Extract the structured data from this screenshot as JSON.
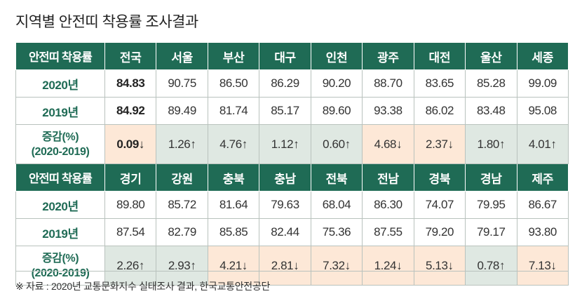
{
  "title": "지역별 안전띠 착용률 조사결과",
  "colors": {
    "header_bg": "#1f6b55",
    "up_bg": "#dfe8e2",
    "down_bg": "#fde8d7",
    "label_text": "#1f6b55"
  },
  "row_labels": {
    "header": "안전띠 착용률",
    "y2020": "2020년",
    "y2019": "2019년",
    "change_line1": "증감(%)",
    "change_line2": "(2020-2019)"
  },
  "blocks": [
    {
      "regions": [
        "전국",
        "서울",
        "부산",
        "대구",
        "인천",
        "광주",
        "대전",
        "울산",
        "세종"
      ],
      "y2020": [
        "84.83",
        "90.75",
        "86.50",
        "86.29",
        "90.20",
        "88.70",
        "83.65",
        "85.28",
        "99.09"
      ],
      "y2019": [
        "84.92",
        "89.49",
        "81.74",
        "85.17",
        "89.60",
        "93.38",
        "86.02",
        "83.48",
        "95.08"
      ],
      "change": [
        "0.09↓",
        "1.26↑",
        "4.76↑",
        "1.12↑",
        "0.60↑",
        "4.68↓",
        "2.37↓",
        "1.80↑",
        "4.01↑"
      ],
      "direction": [
        "down",
        "up",
        "up",
        "up",
        "up",
        "down",
        "down",
        "up",
        "up"
      ]
    },
    {
      "regions": [
        "경기",
        "강원",
        "충북",
        "충남",
        "전북",
        "전남",
        "경북",
        "경남",
        "제주"
      ],
      "y2020": [
        "89.80",
        "85.72",
        "81.64",
        "79.63",
        "68.04",
        "86.30",
        "74.07",
        "79.95",
        "86.67"
      ],
      "y2019": [
        "87.54",
        "82.79",
        "85.85",
        "82.44",
        "75.36",
        "87.55",
        "79.20",
        "79.17",
        "93.80"
      ],
      "change": [
        "2.26↑",
        "2.93↑",
        "4.21↓",
        "2.81↓",
        "7.32↓",
        "1.24↓",
        "5.13↓",
        "0.78↑",
        "7.13↓"
      ],
      "direction": [
        "up",
        "up",
        "down",
        "down",
        "down",
        "down",
        "down",
        "up",
        "down"
      ]
    }
  ],
  "note": "※ 자료 : 2020년 교통문화지수 실태조사 결과, 한국교통안전공단"
}
